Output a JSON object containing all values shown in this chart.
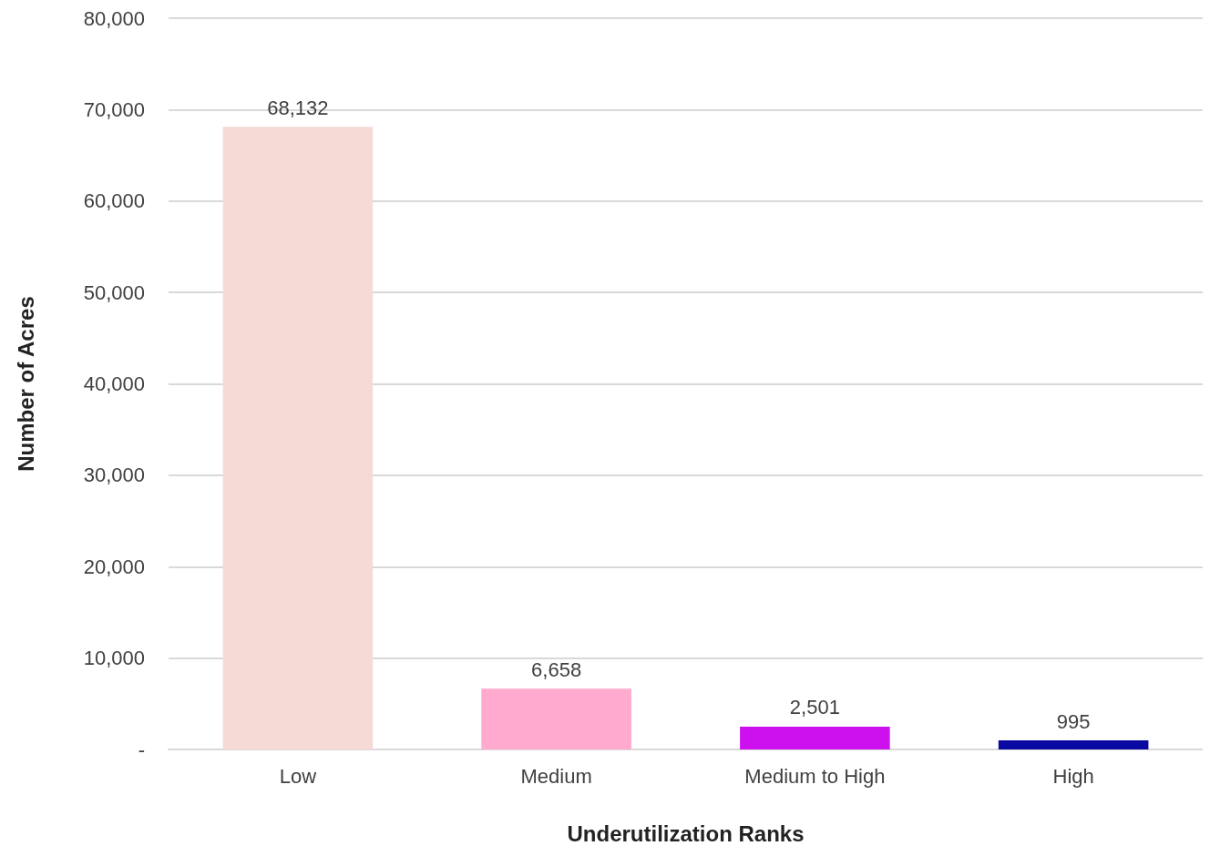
{
  "chart_data": {
    "type": "bar",
    "xlabel": "Underutilization Ranks",
    "ylabel": "Number of Acres",
    "categories": [
      "Low",
      "Medium",
      "Medium to High",
      "High"
    ],
    "values": [
      68132,
      6658,
      2501,
      995
    ],
    "colors": [
      "#f5dad6",
      "#ffaace",
      "#cc11ee",
      "#0a0aa0"
    ],
    "value_labels": [
      "68,132",
      "6,658",
      "2,501",
      "995"
    ],
    "ylim": [
      0,
      80000
    ],
    "yticks": [
      {
        "value": 0,
        "label": "-"
      },
      {
        "value": 10000,
        "label": "10,000"
      },
      {
        "value": 20000,
        "label": "20,000"
      },
      {
        "value": 30000,
        "label": "30,000"
      },
      {
        "value": 40000,
        "label": "40,000"
      },
      {
        "value": 50000,
        "label": "50,000"
      },
      {
        "value": 60000,
        "label": "60,000"
      },
      {
        "value": 70000,
        "label": "70,000"
      },
      {
        "value": 80000,
        "label": "80,000"
      }
    ],
    "grid": "y"
  }
}
